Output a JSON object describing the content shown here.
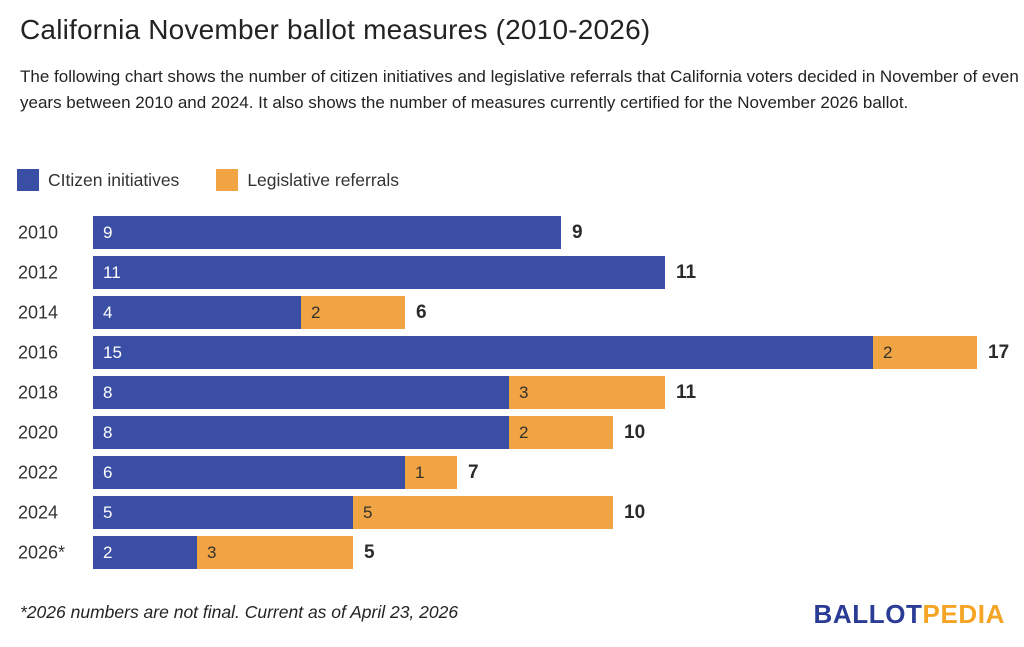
{
  "header": {
    "title": "California November ballot measures (2010-2026)",
    "subtitle": "The following chart shows the number of citizen initiatives and legislative referrals that California voters decided in November of even years between 2010 and 2024. It also shows the number of measures currently certified for the November 2026 ballot."
  },
  "legend": {
    "items": [
      {
        "label": "CItizen initiatives",
        "color": "#3B4EA5"
      },
      {
        "label": "Legislative referrals",
        "color": "#F0A444"
      }
    ]
  },
  "chart_data": {
    "type": "bar",
    "orientation": "horizontal",
    "stacked": true,
    "title": "California November ballot measures (2010-2026)",
    "categories": [
      "2010",
      "2012",
      "2014",
      "2016",
      "2018",
      "2020",
      "2022",
      "2024",
      "2026*"
    ],
    "series": [
      {
        "name": "CItizen initiatives",
        "color": "#3B4EA5",
        "label_color": "#ffffff",
        "values": [
          9,
          11,
          4,
          15,
          8,
          8,
          6,
          5,
          2
        ]
      },
      {
        "name": "Legislative referrals",
        "color": "#F0A444",
        "label_color": "#33322e",
        "values": [
          0,
          0,
          2,
          2,
          3,
          2,
          1,
          5,
          3
        ]
      }
    ],
    "totals": [
      9,
      11,
      6,
      17,
      11,
      10,
      7,
      10,
      5
    ],
    "xlim": [
      0,
      17
    ],
    "grid": false,
    "legend_position": "top",
    "value_labels": "inside-left",
    "total_labels": "end-of-bar"
  },
  "footer": {
    "note": "*2026 numbers are not final. Current as of April 23, 2026",
    "logo": {
      "part1": "BALLOT",
      "part2": "PEDIA",
      "part1_color": "#2B3C97",
      "part2_color": "#F5A423"
    }
  }
}
